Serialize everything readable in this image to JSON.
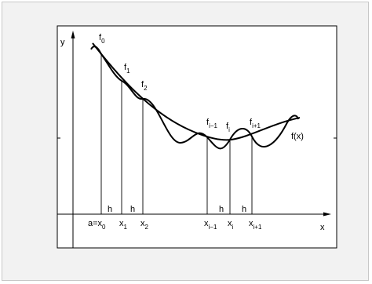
{
  "axes": {
    "y_label": "y",
    "x_label": "x"
  },
  "curve_label": "f(x)",
  "function_values": {
    "f0": {
      "base": "f",
      "sub": "0"
    },
    "f1": {
      "base": "f",
      "sub": "1"
    },
    "f2": {
      "base": "f",
      "sub": "2"
    },
    "fim1": {
      "base": "f",
      "sub": "i−1"
    },
    "fi": {
      "base": "f",
      "sub": "i"
    },
    "fip1": {
      "base": "f",
      "sub": "i+1"
    }
  },
  "x_nodes": {
    "x0": {
      "base": "a=x",
      "sub": "0"
    },
    "x1": {
      "base": "x",
      "sub": "1"
    },
    "x2": {
      "base": "x",
      "sub": "2"
    },
    "xim1": {
      "base": "x",
      "sub": "i−1"
    },
    "xi": {
      "base": "x",
      "sub": "i"
    },
    "xip1": {
      "base": "x",
      "sub": "i+1"
    }
  },
  "step_labels": {
    "h1": "h",
    "h2": "h",
    "h3": "h",
    "h4": "h"
  },
  "colors": {
    "frame_background": "#f2f2f2",
    "plot_background": "#ffffff",
    "ink": "#000000"
  }
}
